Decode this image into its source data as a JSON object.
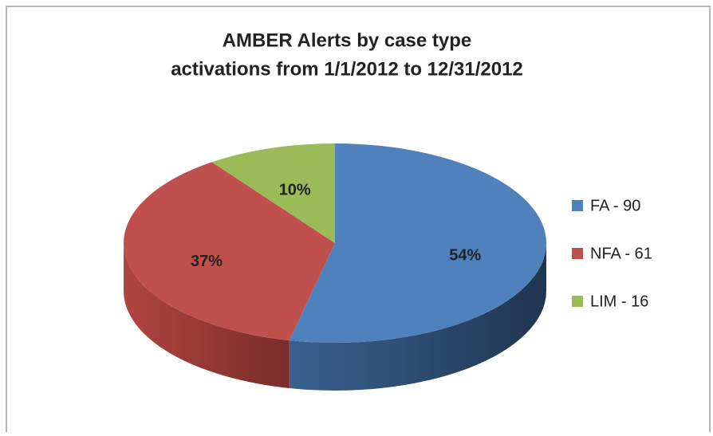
{
  "chart_data": {
    "type": "pie",
    "title": "AMBER Alerts by case type",
    "subtitle": "activations from 1/1/2012 to 12/31/2012",
    "categories": [
      "FA - 90",
      "NFA - 61",
      "LIM - 16"
    ],
    "values": [
      54,
      37,
      10
    ],
    "value_labels": [
      "54%",
      "37%",
      "10%"
    ],
    "colors": [
      "#4f81bd",
      "#c0504d",
      "#9bbb59"
    ],
    "legend": "right"
  }
}
